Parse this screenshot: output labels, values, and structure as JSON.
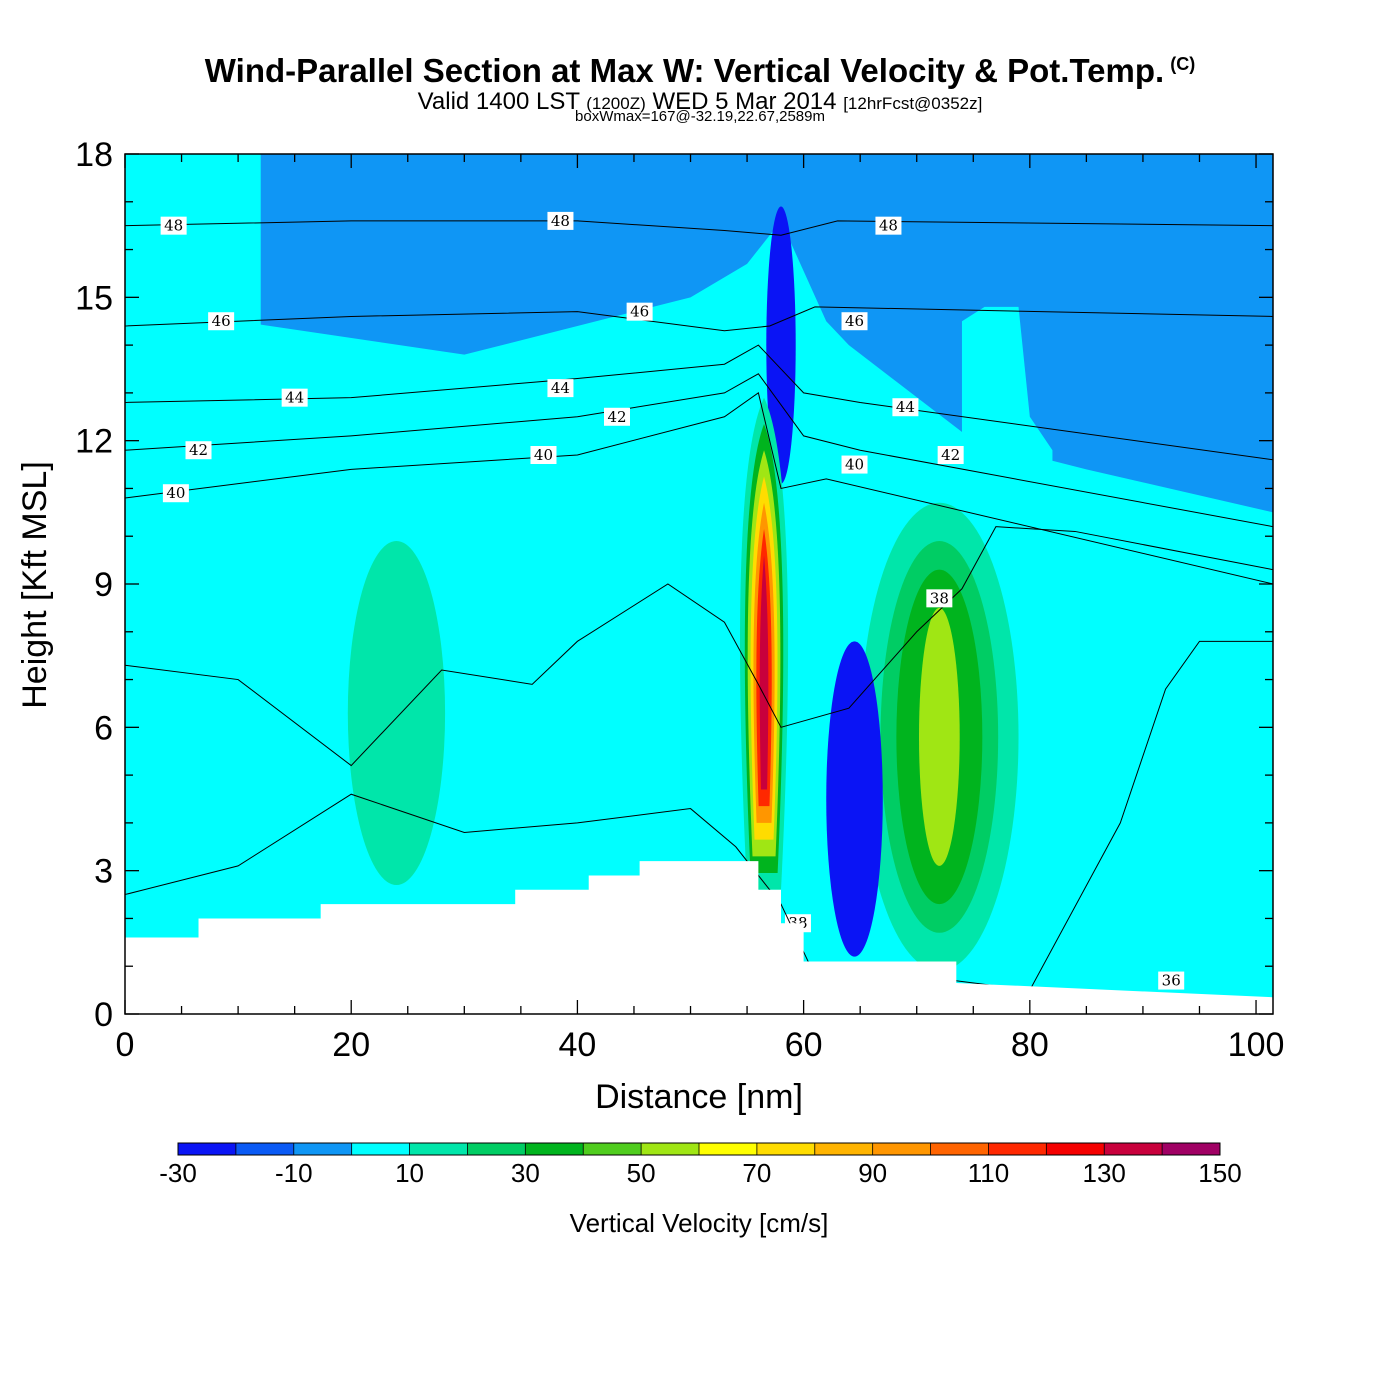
{
  "header": {
    "title": "Wind-Parallel Section at Max W: Vertical Velocity & Pot.Temp.",
    "title_mark": "(C)",
    "valid_prefix": "Valid 1400 LST",
    "valid_utc": "(1200Z)",
    "valid_date": "WED 5 Mar 2014",
    "forecast": "[12hrFcst@0352z]",
    "box_info": "boxWmax=167@-32.19,22.67,2589m"
  },
  "chart_data": {
    "type": "heatmap",
    "xlabel": "Distance [nm]",
    "ylabel": "Height [Kft MSL]",
    "xlim": [
      0,
      101.5
    ],
    "ylim": [
      0,
      18
    ],
    "x_ticks": [
      "0",
      "20",
      "40",
      "60",
      "80",
      "100"
    ],
    "y_ticks": [
      "0",
      "3",
      "6",
      "9",
      "12",
      "15",
      "18"
    ],
    "colorbar": {
      "title": "Vertical Velocity [cm/s]",
      "levels": [
        -30,
        -20,
        -10,
        0,
        10,
        20,
        30,
        40,
        50,
        60,
        70,
        80,
        90,
        100,
        110,
        120,
        130,
        140,
        150
      ],
      "labels": [
        "-30",
        "-10",
        "10",
        "30",
        "50",
        "70",
        "90",
        "110",
        "130",
        "150"
      ],
      "colors": [
        "#0a14f5",
        "#0a5af5",
        "#0f96f5",
        "#00ffff",
        "#00e6aa",
        "#00cd64",
        "#00b41e",
        "#50cd1e",
        "#a0e614",
        "#ffff00",
        "#ffdc00",
        "#ffb400",
        "#ff9600",
        "#ff6400",
        "#ff2800",
        "#f50000",
        "#c8003c",
        "#a00064"
      ]
    },
    "background_color": "#0f96f5",
    "terrain": {
      "x": [
        0,
        6.5,
        6.5,
        17.3,
        17.3,
        34.5,
        34.5,
        41,
        41,
        45.5,
        45.5,
        56,
        56,
        58,
        58,
        60,
        60,
        73.5,
        73.5,
        101.5
      ],
      "height": [
        1.6,
        1.6,
        2.0,
        2.0,
        2.3,
        2.3,
        2.6,
        2.6,
        2.9,
        2.9,
        3.2,
        3.2,
        2.6,
        2.6,
        1.9,
        1.9,
        1.1,
        1.1,
        0.65,
        0.35
      ]
    },
    "velocity_regions": [
      {
        "name": "light-cyan-band",
        "value_cm_s": 5,
        "x": [
          0,
          10,
          30,
          50,
          55,
          58,
          62,
          64,
          75,
          85,
          101.5
        ],
        "top": [
          14.5,
          14.5,
          13.8,
          15,
          15.7,
          16.6,
          14.5,
          14,
          12,
          11.4,
          10.5
        ]
      },
      {
        "name": "cyan-upper-left",
        "value_cm_s": 5,
        "x": [
          0,
          5,
          9,
          12
        ],
        "top": [
          18,
          18,
          18,
          18
        ]
      },
      {
        "name": "cyan-plume-right",
        "value_cm_s": 5,
        "x": [
          74,
          76,
          79,
          80,
          82
        ],
        "top": [
          14.5,
          14.8,
          14.8,
          12.5,
          11.8
        ]
      },
      {
        "name": "green-column-left",
        "value_cm_s": 15,
        "center": [
          24,
          6.3
        ],
        "half_width": 4.3,
        "half_height": 3.6
      },
      {
        "name": "green-column-right",
        "value_cm_s": 15,
        "center": [
          72,
          5.8
        ],
        "half_width": 7,
        "half_height": 4.9
      },
      {
        "name": "green-column-right-core",
        "value_cm_s": 25,
        "center": [
          72,
          5.8
        ],
        "half_width": 5.2,
        "half_height": 4.1
      },
      {
        "name": "green-column-right-inner",
        "value_cm_s": 35,
        "center": [
          72,
          5.8
        ],
        "half_width": 3.8,
        "half_height": 3.5
      },
      {
        "name": "green-column-right-max",
        "value_cm_s": 55,
        "center": [
          72,
          5.8
        ],
        "half_width": 1.8,
        "half_height": 2.7
      },
      {
        "name": "blue-downdraft",
        "value_cm_s": -25,
        "center": [
          64.5,
          4.5
        ],
        "half_width": 2.5,
        "half_height": 3.3
      },
      {
        "name": "blue-upper-streak",
        "value_cm_s": -25,
        "center": [
          58,
          14
        ],
        "half_width": 1.3,
        "half_height": 2.9
      }
    ],
    "updraft_core": {
      "max_value_cm_s": 167,
      "x": 56.5,
      "base_height": 2.6,
      "peak_height": 12.9,
      "levels": [
        {
          "value_cm_s": 10,
          "half_width": 2.5
        },
        {
          "value_cm_s": 30,
          "half_width": 2.0
        },
        {
          "value_cm_s": 50,
          "half_width": 1.7
        },
        {
          "value_cm_s": 70,
          "half_width": 1.4
        },
        {
          "value_cm_s": 90,
          "half_width": 1.1
        },
        {
          "value_cm_s": 110,
          "half_width": 0.8
        },
        {
          "value_cm_s": 130,
          "half_width": 0.45
        }
      ]
    },
    "theta_contours": [
      {
        "label": "48",
        "x": [
          0,
          20,
          40,
          53,
          58,
          63,
          101.5
        ],
        "height": [
          16.5,
          16.6,
          16.6,
          16.4,
          16.3,
          16.6,
          16.5
        ],
        "label_at": [
          [
            4.3,
            16.5
          ],
          [
            38.5,
            16.6
          ],
          [
            67.5,
            16.5
          ]
        ]
      },
      {
        "label": "46",
        "x": [
          0,
          20,
          40,
          53,
          57,
          61,
          101.5
        ],
        "height": [
          14.4,
          14.6,
          14.7,
          14.3,
          14.4,
          14.8,
          14.6
        ],
        "label_at": [
          [
            8.5,
            14.5
          ],
          [
            45.5,
            14.7
          ],
          [
            64.5,
            14.5
          ]
        ]
      },
      {
        "label": "44",
        "x": [
          0,
          20,
          40,
          53,
          56,
          60,
          65,
          101.5
        ],
        "height": [
          12.8,
          12.9,
          13.3,
          13.6,
          14,
          13.0,
          12.8,
          11.6
        ],
        "label_at": [
          [
            15,
            12.9
          ],
          [
            38.5,
            13.1
          ],
          [
            69,
            12.7
          ]
        ]
      },
      {
        "label": "42",
        "x": [
          0,
          20,
          40,
          53,
          56,
          60,
          65,
          101.5
        ],
        "height": [
          11.8,
          12.1,
          12.5,
          13.0,
          13.4,
          12.1,
          11.8,
          10.2
        ],
        "label_at": [
          [
            6.5,
            11.8
          ],
          [
            43.5,
            12.5
          ],
          [
            73,
            11.7
          ]
        ]
      },
      {
        "label": "40",
        "x": [
          0,
          20,
          40,
          53,
          56,
          58,
          62,
          101.5
        ],
        "height": [
          10.8,
          11.4,
          11.7,
          12.5,
          13.0,
          11.0,
          11.2,
          9.0
        ],
        "label_at": [
          [
            4.5,
            10.9
          ],
          [
            37,
            11.7
          ],
          [
            64.5,
            11.5
          ]
        ]
      },
      {
        "label": "38",
        "x": [
          0,
          10,
          20,
          28,
          36,
          40,
          48,
          53,
          56,
          58,
          64,
          70,
          74,
          77,
          84,
          101.5
        ],
        "height": [
          7.3,
          7.0,
          5.2,
          7.2,
          6.9,
          7.8,
          9.0,
          8.2,
          6.9,
          6.0,
          6.4,
          8.0,
          8.9,
          10.2,
          10.1,
          9.3
        ],
        "label_at": [
          [
            72,
            8.7
          ],
          [
            59.5,
            1.9
          ]
        ]
      },
      {
        "label": "36",
        "x": [
          0,
          10,
          20,
          30,
          40,
          50,
          54,
          58,
          61,
          70,
          80,
          88,
          92,
          95,
          101.5
        ],
        "height": [
          2.5,
          3.1,
          4.6,
          3.8,
          4.0,
          4.3,
          3.5,
          2.3,
          0.8,
          0.8,
          0.5,
          4.0,
          6.8,
          7.8,
          7.8
        ],
        "label_at": [
          [
            92.5,
            0.7
          ]
        ]
      }
    ]
  }
}
